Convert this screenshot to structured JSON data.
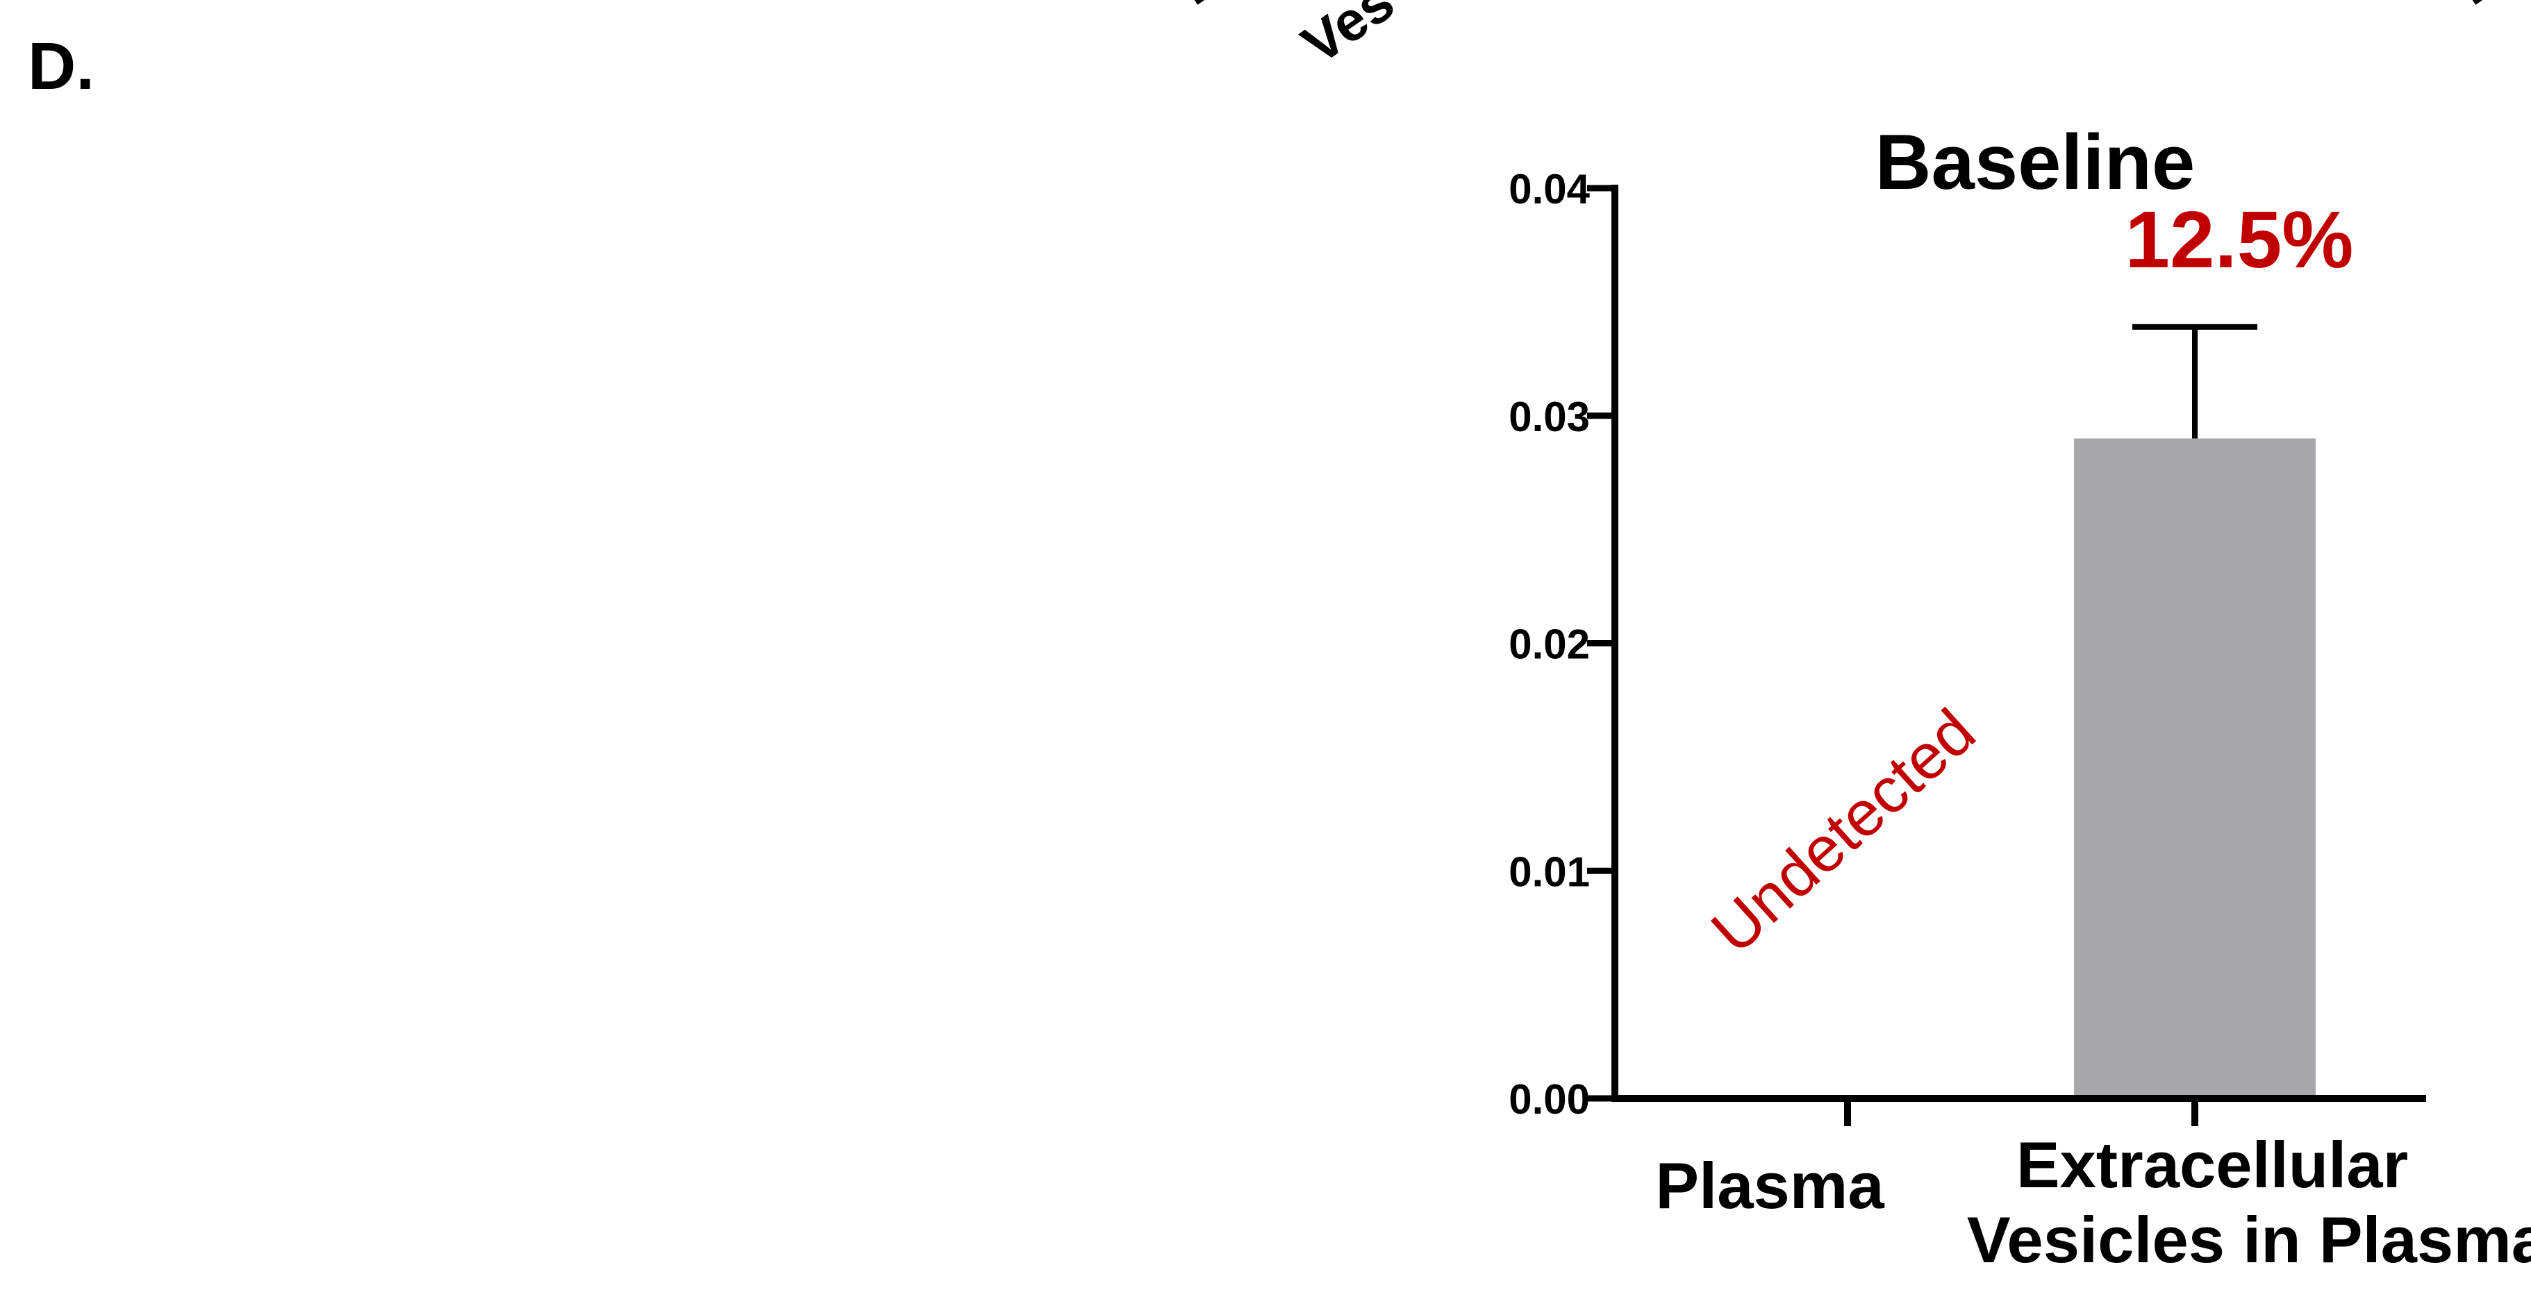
{
  "panel_label": "D.",
  "top_fragments": [
    "E",
    "E",
    "Ves",
    "E"
  ],
  "chart_data": {
    "type": "bar",
    "title": "Baseline",
    "categories": [
      "Plasma",
      "Extracellular\nVesicles in Plasma"
    ],
    "values": [
      0,
      0.029
    ],
    "error_upper": [
      null,
      0.0339
    ],
    "annotations": [
      {
        "category": "Plasma",
        "text": "Undetected",
        "color": "#c00000"
      },
      {
        "category": "Extracellular\nVesicles in Plasma",
        "text": "12.5%",
        "color": "#c00000"
      }
    ],
    "ylim": [
      0,
      0.04
    ],
    "yticks": [
      "0.00",
      "0.01",
      "0.02",
      "0.03",
      "0.04"
    ],
    "xlabel": "",
    "ylabel": "",
    "bar_color": "#a7a6ab",
    "grid": false,
    "legend": "none"
  }
}
